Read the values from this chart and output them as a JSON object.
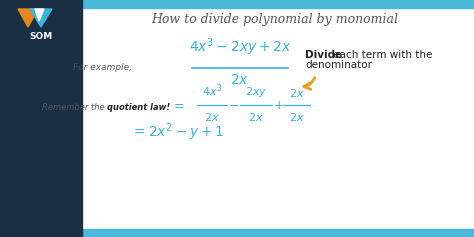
{
  "title": "How to divide polynomial by monomial",
  "title_color": "#555555",
  "title_fontsize": 10,
  "bg_color": "#ffffff",
  "top_bar_color": "#4ab8d8",
  "bottom_bar_color": "#4ab8d8",
  "left_panel_color": "#1a2e44",
  "math_color": "#3ab5d8",
  "text_color": "#222222",
  "label_color": "#555555",
  "for_example_text": "For example,",
  "remember_text": "Remember the ",
  "remember_bold": "quotient law!",
  "divide_bold": "Divide",
  "divide_rest": " each term with the",
  "denominator_text": "denominator",
  "som_text": "SOM",
  "arrow_color": "#e8a020",
  "orange_color": "#e8871a",
  "white_color": "#ffffff"
}
